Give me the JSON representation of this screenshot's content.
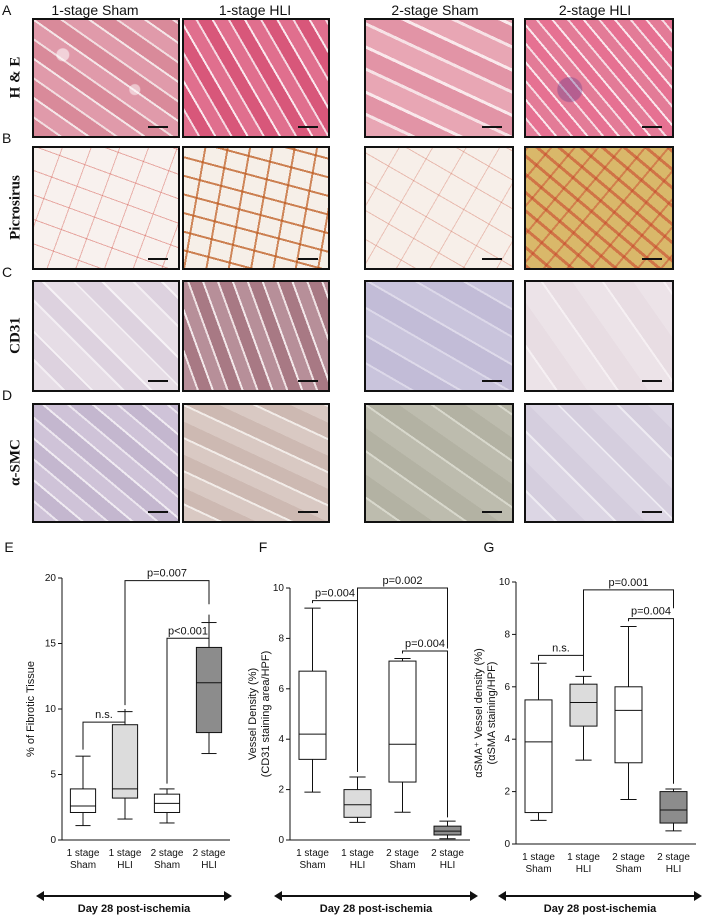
{
  "figure": {
    "column_titles": [
      "1-stage Sham",
      "1-stage HLI",
      "2-stage Sham",
      "2-stage HLI"
    ],
    "rows": [
      {
        "letter": "A",
        "label": "H & E",
        "textures": [
          "he",
          "he2",
          "he3",
          "he4"
        ]
      },
      {
        "letter": "B",
        "label": "Picrosirus",
        "textures": [
          "ps",
          "ps2",
          "ps3",
          "ps4"
        ]
      },
      {
        "letter": "C",
        "label": "CD31",
        "textures": [
          "cd",
          "cd2",
          "cd3",
          "cd4"
        ]
      },
      {
        "letter": "D",
        "label": "α-SMC",
        "textures": [
          "sm",
          "sm2",
          "sm3",
          "sm4"
        ]
      }
    ]
  },
  "chart_data": [
    {
      "type": "box",
      "letter": "E",
      "ylabel": "% of Fibrotic Tissue",
      "ylim": [
        0,
        20
      ],
      "yticks": [
        0,
        5,
        10,
        15,
        20
      ],
      "categories": [
        [
          "1 stage",
          "Sham"
        ],
        [
          "1 stage",
          "HLI"
        ],
        [
          "2 stage",
          "Sham"
        ],
        [
          "2 stage",
          "HLI"
        ]
      ],
      "boxes": [
        {
          "min": 1.1,
          "q1": 2.1,
          "median": 2.6,
          "q3": 3.9,
          "max": 6.4
        },
        {
          "min": 1.6,
          "q1": 3.2,
          "median": 3.9,
          "q3": 8.8,
          "max": 9.8
        },
        {
          "min": 1.3,
          "q1": 2.1,
          "median": 2.8,
          "q3": 3.5,
          "max": 3.9
        },
        {
          "min": 6.6,
          "q1": 8.2,
          "median": 12.0,
          "q3": 14.7,
          "max": 16.6
        }
      ],
      "box_fill": [
        "#ffffff",
        "#dcdcdc",
        "#ffffff",
        "#8c8c8c"
      ],
      "comparisons": [
        {
          "label": "n.s.",
          "from": 0,
          "to": 1,
          "y": 9.0,
          "left_drop": 6.9,
          "right_drop": 10.0
        },
        {
          "label": "p<0.001",
          "from": 2,
          "to": 3,
          "y": 15.4,
          "left_drop": 4.3,
          "right_drop": 17.2
        },
        {
          "label": "p=0.007",
          "from": 1,
          "to": 3,
          "y": 19.8,
          "left_drop": 10.3,
          "right_drop": 18.0
        }
      ],
      "xcaption": "Day 28 post-ischemia"
    },
    {
      "type": "box",
      "letter": "F",
      "ylabel": "Vessel Density (%)",
      "ylabel2": "(CD31 staining area/HPF)",
      "ylim": [
        0,
        10
      ],
      "yticks": [
        0,
        2,
        4,
        6,
        8,
        10
      ],
      "categories": [
        [
          "1 stage",
          "Sham"
        ],
        [
          "1 stage",
          "HLI"
        ],
        [
          "2 stage",
          "Sham"
        ],
        [
          "2 stage",
          "HLI"
        ]
      ],
      "boxes": [
        {
          "min": 1.9,
          "q1": 3.2,
          "median": 4.2,
          "q3": 6.7,
          "max": 9.2
        },
        {
          "min": 0.7,
          "q1": 0.9,
          "median": 1.4,
          "q3": 2.0,
          "max": 2.5
        },
        {
          "min": 1.1,
          "q1": 2.3,
          "median": 3.8,
          "q3": 7.1,
          "max": 7.2
        },
        {
          "min": 0.05,
          "q1": 0.2,
          "median": 0.35,
          "q3": 0.55,
          "max": 0.75
        }
      ],
      "box_fill": [
        "#ffffff",
        "#dcdcdc",
        "#ffffff",
        "#8c8c8c"
      ],
      "comparisons": [
        {
          "label": "p=0.004",
          "from": 0,
          "to": 1,
          "y": 9.5,
          "left_drop": 9.4,
          "right_drop": 2.7
        },
        {
          "label": "p=0.004",
          "from": 2,
          "to": 3,
          "y": 7.5,
          "left_drop": 7.4,
          "right_drop": 0.9
        },
        {
          "label": "p=0.002",
          "from": 1,
          "to": 3,
          "y": 10.0,
          "left_drop": 9.5,
          "right_drop": 7.6
        }
      ],
      "xcaption": "Day 28 post-ischemia"
    },
    {
      "type": "box",
      "letter": "G",
      "ylabel": "αSMA⁺ Vessel density (%)",
      "ylabel2": "(αSMA staining/HPF)",
      "ylim": [
        0,
        10
      ],
      "yticks": [
        0,
        2,
        4,
        6,
        8,
        10
      ],
      "categories": [
        [
          "1 stage",
          "Sham"
        ],
        [
          "1 stage",
          "HLI"
        ],
        [
          "2 stage",
          "Sham"
        ],
        [
          "2 stage",
          "HLI"
        ]
      ],
      "boxes": [
        {
          "min": 0.9,
          "q1": 1.2,
          "median": 3.9,
          "q3": 5.5,
          "max": 6.9
        },
        {
          "min": 3.2,
          "q1": 4.5,
          "median": 5.4,
          "q3": 6.1,
          "max": 6.4
        },
        {
          "min": 1.7,
          "q1": 3.1,
          "median": 5.1,
          "q3": 6.0,
          "max": 8.3
        },
        {
          "min": 0.5,
          "q1": 0.8,
          "median": 1.3,
          "q3": 2.0,
          "max": 2.1
        }
      ],
      "box_fill": [
        "#ffffff",
        "#dcdcdc",
        "#ffffff",
        "#8c8c8c"
      ],
      "comparisons": [
        {
          "label": "n.s.",
          "from": 0,
          "to": 1,
          "y": 7.2,
          "left_drop": 7.0,
          "right_drop": 6.6
        },
        {
          "label": "p=0.004",
          "from": 2,
          "to": 3,
          "y": 8.6,
          "left_drop": 8.5,
          "right_drop": 2.3
        },
        {
          "label": "p=0.001",
          "from": 1,
          "to": 3,
          "y": 9.7,
          "left_drop": 6.7,
          "right_drop": 9.0
        }
      ],
      "xcaption": "Day 28 post-ischemia"
    }
  ]
}
